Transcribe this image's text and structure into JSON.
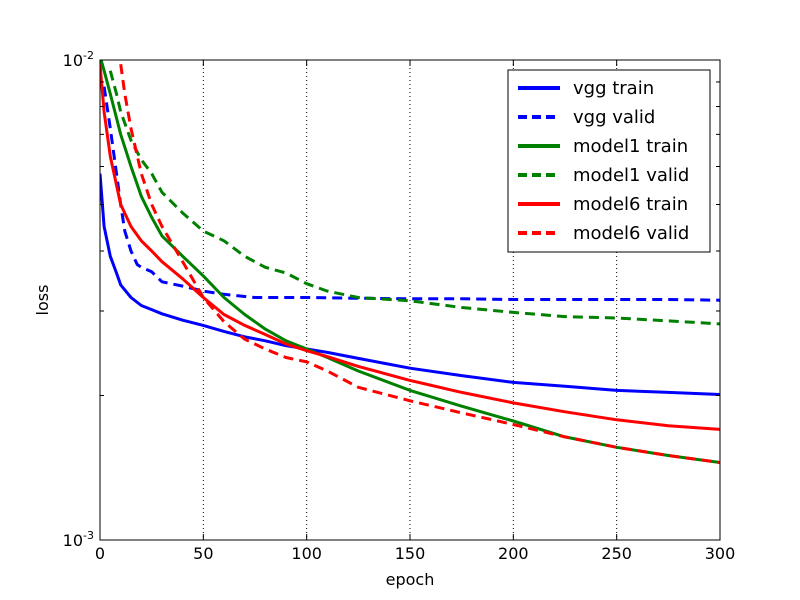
{
  "chart_data": {
    "type": "line",
    "xlabel": "epoch",
    "ylabel": "loss",
    "xlim": [
      0,
      300
    ],
    "ylim": [
      0.001,
      0.01
    ],
    "yscale": "log",
    "x_ticks": [
      0,
      50,
      100,
      150,
      200,
      250,
      300
    ],
    "y_ticks": [
      {
        "value": 0.001,
        "base": "10",
        "exp": "-3"
      },
      {
        "value": 0.01,
        "base": "10",
        "exp": "-2"
      }
    ],
    "grid": "vertical dotted",
    "legend_position": "top-right",
    "series": [
      {
        "name": "vgg train",
        "color": "#0000ff",
        "style": "solid",
        "x": [
          0,
          2,
          5,
          8,
          10,
          15,
          20,
          25,
          30,
          40,
          50,
          60,
          70,
          80,
          90,
          100,
          110,
          125,
          150,
          175,
          200,
          225,
          250,
          275,
          300
        ],
        "y": [
          0.0058,
          0.0045,
          0.0039,
          0.0036,
          0.0034,
          0.0032,
          0.00308,
          0.00302,
          0.00296,
          0.00287,
          0.0028,
          0.00272,
          0.00265,
          0.0026,
          0.00254,
          0.0025,
          0.00246,
          0.00239,
          0.00228,
          0.0022,
          0.00213,
          0.00209,
          0.00205,
          0.00203,
          0.00201
        ]
      },
      {
        "name": "vgg valid",
        "color": "#0000ff",
        "style": "dashed",
        "x": [
          2,
          5,
          8,
          10,
          12,
          15,
          18,
          20,
          25,
          30,
          40,
          50,
          60,
          75,
          100,
          125,
          150,
          175,
          200,
          225,
          250,
          275,
          300
        ],
        "y": [
          0.0088,
          0.0072,
          0.0058,
          0.005,
          0.0044,
          0.004,
          0.00375,
          0.0037,
          0.00362,
          0.00345,
          0.00338,
          0.0033,
          0.00325,
          0.0032,
          0.0032,
          0.00319,
          0.00318,
          0.00318,
          0.00317,
          0.00317,
          0.00317,
          0.00317,
          0.00316
        ]
      },
      {
        "name": "model1 train",
        "color": "#008000",
        "style": "solid",
        "x": [
          0,
          2,
          5,
          10,
          15,
          20,
          25,
          30,
          40,
          50,
          60,
          70,
          80,
          90,
          100,
          110,
          125,
          150,
          175,
          200,
          225,
          250,
          275,
          300
        ],
        "y": [
          0.0102,
          0.0095,
          0.0085,
          0.007,
          0.006,
          0.0052,
          0.0047,
          0.0043,
          0.0039,
          0.00355,
          0.0032,
          0.00295,
          0.00275,
          0.0026,
          0.0025,
          0.0024,
          0.00225,
          0.00205,
          0.0019,
          0.00177,
          0.00164,
          0.00156,
          0.0015,
          0.00145
        ]
      },
      {
        "name": "model1 valid",
        "color": "#008000",
        "style": "dashed",
        "x": [
          5,
          8,
          10,
          15,
          20,
          25,
          30,
          40,
          50,
          60,
          70,
          80,
          90,
          100,
          110,
          125,
          150,
          175,
          200,
          225,
          250,
          275,
          300
        ],
        "y": [
          0.0095,
          0.0085,
          0.0078,
          0.0068,
          0.0062,
          0.0058,
          0.0053,
          0.0048,
          0.0044,
          0.0042,
          0.0039,
          0.0037,
          0.0036,
          0.00342,
          0.0033,
          0.0032,
          0.00315,
          0.00305,
          0.00298,
          0.00292,
          0.0029,
          0.00286,
          0.00282
        ]
      },
      {
        "name": "model6 train",
        "color": "#ff0000",
        "style": "solid",
        "x": [
          0,
          2,
          5,
          10,
          15,
          20,
          25,
          30,
          40,
          50,
          60,
          70,
          80,
          90,
          100,
          110,
          125,
          150,
          175,
          200,
          225,
          250,
          275,
          300
        ],
        "y": [
          0.0098,
          0.0078,
          0.0063,
          0.005,
          0.0045,
          0.0042,
          0.004,
          0.0038,
          0.0035,
          0.0032,
          0.00295,
          0.0028,
          0.00268,
          0.00256,
          0.00248,
          0.00241,
          0.0023,
          0.00215,
          0.00203,
          0.00193,
          0.00185,
          0.00178,
          0.00173,
          0.0017
        ]
      },
      {
        "name": "model6 valid",
        "color": "#ff0000",
        "style": "dashed",
        "x": [
          10,
          12,
          15,
          20,
          25,
          30,
          40,
          50,
          60,
          70,
          80,
          90,
          100,
          110,
          125,
          150,
          175,
          200,
          225,
          250,
          275,
          300
        ],
        "y": [
          0.0098,
          0.0085,
          0.0072,
          0.0058,
          0.005,
          0.0045,
          0.0038,
          0.0032,
          0.00285,
          0.00262,
          0.0025,
          0.0024,
          0.00235,
          0.00225,
          0.00208,
          0.00195,
          0.00184,
          0.00174,
          0.00164,
          0.00156,
          0.0015,
          0.00145
        ]
      }
    ]
  }
}
